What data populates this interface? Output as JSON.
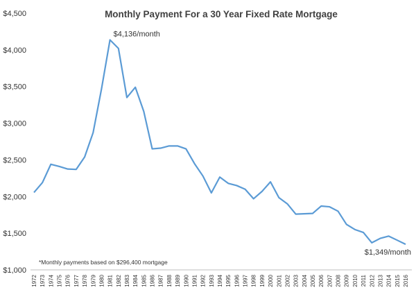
{
  "chart_data": {
    "type": "line",
    "title": "Monthly Payment For a 30 Year Fixed Rate Mortgage",
    "xlabel": "",
    "ylabel": "",
    "ylim": [
      1000,
      4500
    ],
    "yticks": [
      "$1,000",
      "$1,500",
      "$2,000",
      "$2,500",
      "$3,000",
      "$3,500",
      "$4,000",
      "$4,500"
    ],
    "ytick_values": [
      1000,
      1500,
      2000,
      2500,
      3000,
      3500,
      4000,
      4500
    ],
    "categories": [
      "1972",
      "1973",
      "1974",
      "1975",
      "1976",
      "1977",
      "1978",
      "1979",
      "1980",
      "1981",
      "1982",
      "1983",
      "1984",
      "1985",
      "1986",
      "1987",
      "1988",
      "1989",
      "1990",
      "1991",
      "1992",
      "1993",
      "1994",
      "1995",
      "1996",
      "1997",
      "1998",
      "1999",
      "2000",
      "2001",
      "2002",
      "2003",
      "2004",
      "2005",
      "2006",
      "2007",
      "2008",
      "2009",
      "2010",
      "2011",
      "2012",
      "2013",
      "2014",
      "2015",
      "2016"
    ],
    "series": [
      {
        "values": [
          2055,
          2190,
          2440,
          2410,
          2375,
          2370,
          2540,
          2870,
          3470,
          4136,
          4020,
          3350,
          3490,
          3160,
          2650,
          2660,
          2690,
          2690,
          2650,
          2450,
          2280,
          2050,
          2265,
          2180,
          2150,
          2100,
          1970,
          2070,
          2200,
          1985,
          1900,
          1760,
          1765,
          1770,
          1870,
          1860,
          1800,
          1620,
          1550,
          1510,
          1370,
          1430,
          1460,
          1405,
          1349
        ],
        "color": "#5b9bd5"
      }
    ],
    "grid": false,
    "annotations": [
      {
        "text": "$4,136/month",
        "x": "1981",
        "y": 4136
      },
      {
        "text": "$1,349/month",
        "x": "2016",
        "y": 1349
      }
    ],
    "footnote": "*Monthly payments based on $296,400 mortgage"
  }
}
